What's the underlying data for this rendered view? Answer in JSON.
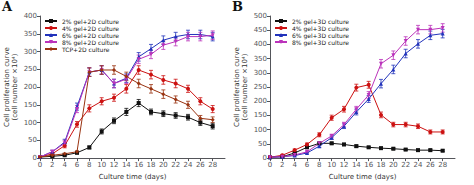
{
  "chart_data": [
    {
      "type": "line",
      "title": "A",
      "xlabel": "Culture time (days)",
      "ylabel": "Cell proliferation curve\n(cell number ×10⁴)",
      "xlim": [
        0,
        30
      ],
      "xticks": [
        0,
        2,
        4,
        6,
        8,
        10,
        12,
        14,
        16,
        18,
        20,
        22,
        24,
        26,
        28
      ],
      "ylim": [
        0,
        400
      ],
      "yticks": [
        0,
        50,
        100,
        150,
        200,
        250,
        300,
        350,
        400
      ],
      "grid": false,
      "legend": "upper left",
      "x": [
        0,
        2,
        4,
        6,
        8,
        10,
        12,
        14,
        16,
        18,
        20,
        22,
        24,
        26,
        28
      ],
      "series": [
        {
          "name": "2% gel+2D culture",
          "color": "#111111",
          "marker": "square",
          "values": [
            3,
            5,
            8,
            15,
            30,
            75,
            105,
            130,
            155,
            130,
            125,
            120,
            115,
            100,
            90
          ],
          "yerr": [
            2,
            2,
            2,
            3,
            4,
            7,
            8,
            10,
            10,
            8,
            8,
            8,
            8,
            8,
            8
          ]
        },
        {
          "name": "4% gel+2D culture",
          "color": "#cc1111",
          "marker": "circle",
          "values": [
            3,
            12,
            35,
            95,
            140,
            160,
            170,
            195,
            248,
            235,
            220,
            210,
            195,
            160,
            138
          ],
          "yerr": [
            2,
            4,
            6,
            8,
            10,
            10,
            10,
            12,
            12,
            12,
            12,
            12,
            10,
            10,
            10
          ]
        },
        {
          "name": "6% gel+2D culture",
          "color": "#2233bb",
          "marker": "triangle-up",
          "values": [
            3,
            18,
            45,
            145,
            242,
            248,
            210,
            225,
            285,
            308,
            332,
            342,
            348,
            348,
            342
          ],
          "yerr": [
            2,
            4,
            8,
            10,
            12,
            12,
            12,
            12,
            12,
            12,
            12,
            12,
            12,
            12,
            12
          ]
        },
        {
          "name": "8% gel+2D culture",
          "color": "#bb33bb",
          "marker": "triangle-down",
          "values": [
            3,
            18,
            42,
            138,
            242,
            248,
            210,
            222,
            278,
            292,
            318,
            328,
            342,
            342,
            346
          ],
          "yerr": [
            2,
            4,
            8,
            10,
            12,
            12,
            12,
            12,
            12,
            12,
            12,
            12,
            12,
            12,
            12
          ]
        },
        {
          "name": "TCP+2D culture",
          "color": "#993311",
          "marker": "diamond",
          "values": [
            3,
            8,
            12,
            18,
            242,
            248,
            248,
            230,
            210,
            195,
            180,
            165,
            150,
            112,
            108
          ],
          "yerr": [
            2,
            2,
            2,
            2,
            12,
            12,
            12,
            12,
            12,
            12,
            12,
            10,
            10,
            8,
            8
          ]
        }
      ]
    },
    {
      "type": "line",
      "title": "B",
      "xlabel": "Culture time (days)",
      "ylabel": "Cell proliferation curve\n(cell number ×10⁴)",
      "xlim": [
        0,
        30
      ],
      "xticks": [
        0,
        2,
        4,
        6,
        8,
        10,
        12,
        14,
        16,
        18,
        20,
        22,
        24,
        26,
        28
      ],
      "ylim": [
        0,
        500
      ],
      "yticks": [
        0,
        50,
        100,
        150,
        200,
        250,
        300,
        350,
        400,
        450,
        500
      ],
      "grid": false,
      "legend": "upper left",
      "x": [
        0,
        2,
        4,
        6,
        8,
        10,
        12,
        14,
        16,
        18,
        20,
        22,
        24,
        26,
        28
      ],
      "series": [
        {
          "name": "2% gel+3D culture",
          "color": "#111111",
          "marker": "square",
          "values": [
            3,
            5,
            18,
            38,
            52,
            52,
            48,
            42,
            38,
            35,
            33,
            30,
            28,
            28,
            26
          ],
          "yerr": [
            2,
            2,
            3,
            4,
            4,
            4,
            4,
            4,
            3,
            3,
            3,
            3,
            3,
            3,
            3
          ]
        },
        {
          "name": "4% gel+3D culture",
          "color": "#cc1111",
          "marker": "circle",
          "values": [
            3,
            10,
            28,
            48,
            82,
            142,
            172,
            248,
            258,
            152,
            118,
            118,
            112,
            92,
            92
          ],
          "yerr": [
            2,
            3,
            4,
            5,
            7,
            9,
            10,
            12,
            12,
            10,
            8,
            8,
            8,
            7,
            7
          ]
        },
        {
          "name": "6% gel+3D culture",
          "color": "#2233bb",
          "marker": "triangle-up",
          "values": [
            3,
            5,
            9,
            18,
            42,
            72,
            112,
            162,
            208,
            262,
            312,
            368,
            402,
            432,
            438
          ],
          "yerr": [
            2,
            2,
            2,
            3,
            4,
            6,
            8,
            10,
            12,
            15,
            15,
            15,
            15,
            15,
            15
          ]
        },
        {
          "name": "8% gel+3D culture",
          "color": "#bb33bb",
          "marker": "triangle-down",
          "values": [
            3,
            5,
            11,
            22,
            52,
            78,
            118,
            172,
            222,
            332,
            362,
            412,
            452,
            452,
            458
          ],
          "yerr": [
            2,
            2,
            2,
            3,
            4,
            6,
            8,
            10,
            12,
            15,
            15,
            15,
            15,
            15,
            15
          ]
        }
      ]
    }
  ]
}
